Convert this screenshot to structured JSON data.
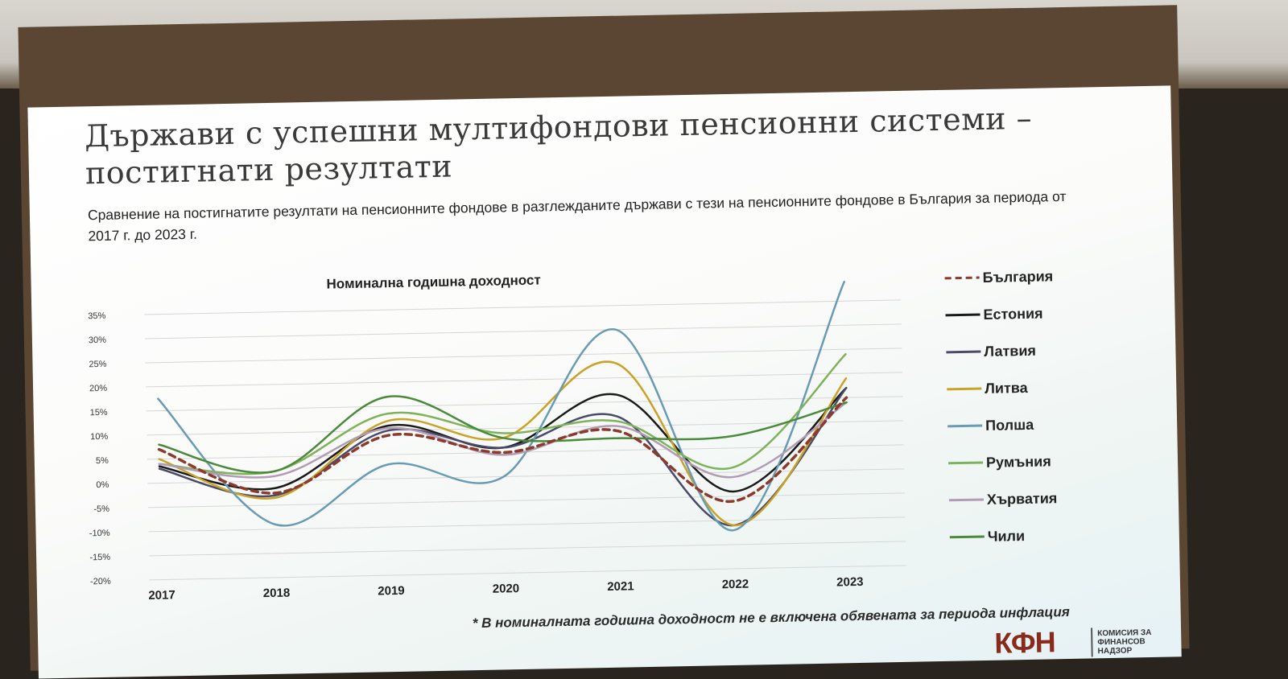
{
  "slide": {
    "title": "Държави с успешни мултифондови пенсионни системи – постигнати резултати",
    "subtitle": "Сравнение на постигнатите резултати на пенсионните фондове в разглежданите държави с тези на пенсионните фондове в България за периода от 2017 г. до 2023 г.",
    "footnote": "* В номиналната годишна доходност не е включена обявената за периода инфлация",
    "logo": {
      "mark": "КФН",
      "text": "КОМИСИЯ ЗА ФИНАНСОВ НАДЗОР"
    }
  },
  "chart_data": {
    "type": "line",
    "title": "Номинална годишна доходност",
    "xlabel": "",
    "ylabel": "",
    "categories": [
      "2017",
      "2018",
      "2019",
      "2020",
      "2021",
      "2022",
      "2023"
    ],
    "y_ticks": [
      "35%",
      "30%",
      "25%",
      "20%",
      "15%",
      "10%",
      "5%",
      "0%",
      "-5%",
      "-10%",
      "-15%",
      "-20%"
    ],
    "ylim": [
      -20,
      35
    ],
    "grid": true,
    "legend_position": "right",
    "series": [
      {
        "name": "България",
        "values": [
          7,
          -2.5,
          9,
          5,
          9,
          -6,
          15
        ],
        "color": "#8b3a2b",
        "dash": true
      },
      {
        "name": "Естония",
        "values": [
          3.5,
          -1.5,
          11,
          6,
          16.5,
          -4,
          17
        ],
        "color": "#1a1a1a",
        "dash": false
      },
      {
        "name": "Латвия",
        "values": [
          3,
          -3,
          10,
          6,
          12,
          -11,
          17
        ],
        "color": "#4a4a6a",
        "dash": false
      },
      {
        "name": "Литва",
        "values": [
          5,
          -3.5,
          12,
          8,
          23,
          -11,
          19
        ],
        "color": "#c9a227",
        "dash": false
      },
      {
        "name": "Полша",
        "values": [
          17.5,
          -9,
          3,
          0,
          30,
          -12,
          39
        ],
        "color": "#6a9bb4",
        "dash": false
      },
      {
        "name": "Румъния",
        "values": [
          4,
          2,
          13.5,
          9,
          11,
          1,
          24
        ],
        "color": "#7fb35a",
        "dash": false
      },
      {
        "name": "Хърватия",
        "values": [
          4,
          1,
          10.5,
          4.5,
          10,
          -1,
          14
        ],
        "color": "#b29bb4",
        "dash": false
      },
      {
        "name": "Чили",
        "values": [
          8,
          2,
          17,
          8,
          7.5,
          7.5,
          14
        ],
        "color": "#4a8a3a",
        "dash": false
      }
    ]
  }
}
